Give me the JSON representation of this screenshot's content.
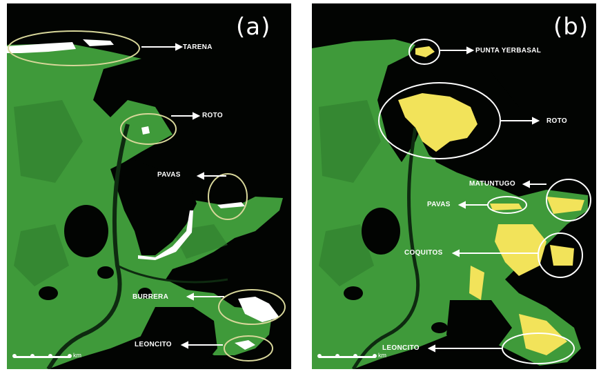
{
  "panels": [
    {
      "letter": "(a)",
      "sites": [
        "TARENA",
        "ROTO",
        "PAVAS",
        "BURRERA",
        "LEONCITO"
      ],
      "highlight_color": "#ffffff",
      "scale_unit": "km"
    },
    {
      "letter": "(b)",
      "sites": [
        "PUNTA YERBASAL",
        "ROTO",
        "MATUNTUGO",
        "PAVAS",
        "COQUITOS",
        "LEONCITO"
      ],
      "highlight_color": "#f2e35a",
      "scale_unit": "km"
    }
  ],
  "colors": {
    "land": "#3f9a3a",
    "land_dark": "#2e7a2c",
    "water": "#020402",
    "circle_a": "#d8d79a",
    "circle_b": "#ffffff",
    "arrow": "#ffffff"
  }
}
